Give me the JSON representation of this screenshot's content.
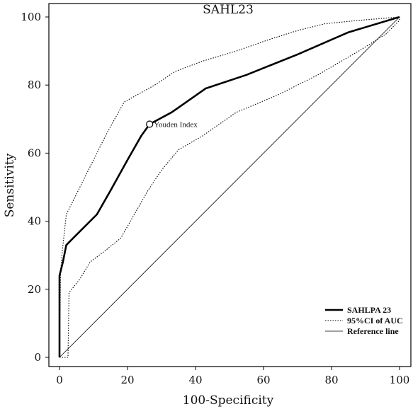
{
  "chart_data": {
    "type": "line",
    "title": "SAHL23",
    "xlabel": "100-Specificity",
    "ylabel": "Sensitivity",
    "xlim": [
      0,
      100
    ],
    "ylim": [
      0,
      100
    ],
    "xticks": [
      0,
      20,
      40,
      60,
      80,
      100
    ],
    "yticks": [
      0,
      20,
      40,
      60,
      80,
      100
    ],
    "grid": false,
    "legend_position": "bottom-right",
    "series": [
      {
        "name": "SAHLPA 23",
        "style": "solid-thick",
        "color": "#000000",
        "points": [
          [
            0,
            0
          ],
          [
            0,
            24
          ],
          [
            1,
            28
          ],
          [
            2,
            33
          ],
          [
            4,
            35
          ],
          [
            7,
            38
          ],
          [
            11,
            42
          ],
          [
            15,
            49
          ],
          [
            20,
            58
          ],
          [
            24,
            65
          ],
          [
            26.5,
            68.5
          ],
          [
            33,
            72
          ],
          [
            43,
            79
          ],
          [
            55,
            83
          ],
          [
            70,
            89
          ],
          [
            85,
            95.5
          ],
          [
            100,
            100
          ]
        ]
      },
      {
        "name": "95%CI of AUC",
        "style": "dotted",
        "color": "#000000",
        "points": [
          [
            0,
            0
          ],
          [
            0.3,
            25
          ],
          [
            0.8,
            31
          ],
          [
            2,
            42
          ],
          [
            6,
            50
          ],
          [
            10,
            58
          ],
          [
            14,
            66
          ],
          [
            19,
            75
          ],
          [
            28,
            80
          ],
          [
            34,
            84
          ],
          [
            42,
            87
          ],
          [
            52,
            90
          ],
          [
            62,
            93.5
          ],
          [
            70,
            96
          ],
          [
            78,
            98
          ],
          [
            88,
            99
          ],
          [
            100,
            100
          ]
        ]
      },
      {
        "name": "95%CI of AUC",
        "style": "dotted",
        "color": "#000000",
        "points": [
          [
            0,
            0
          ],
          [
            2.5,
            0
          ],
          [
            2.8,
            19
          ],
          [
            6,
            23
          ],
          [
            9,
            28
          ],
          [
            13,
            31
          ],
          [
            18,
            35
          ],
          [
            22,
            42
          ],
          [
            26,
            49
          ],
          [
            30,
            55
          ],
          [
            35,
            61
          ],
          [
            42,
            65
          ],
          [
            52,
            72
          ],
          [
            64,
            77
          ],
          [
            76,
            83
          ],
          [
            88,
            90
          ],
          [
            96,
            95
          ],
          [
            100,
            99
          ],
          [
            100,
            100
          ]
        ]
      },
      {
        "name": "Reference line",
        "style": "thin",
        "color": "#000000",
        "points": [
          [
            0,
            0
          ],
          [
            100,
            100
          ]
        ]
      }
    ],
    "annotations": [
      {
        "label": "Youden Index",
        "x": 26.5,
        "y": 68.5,
        "marker": "open-circle"
      }
    ]
  }
}
